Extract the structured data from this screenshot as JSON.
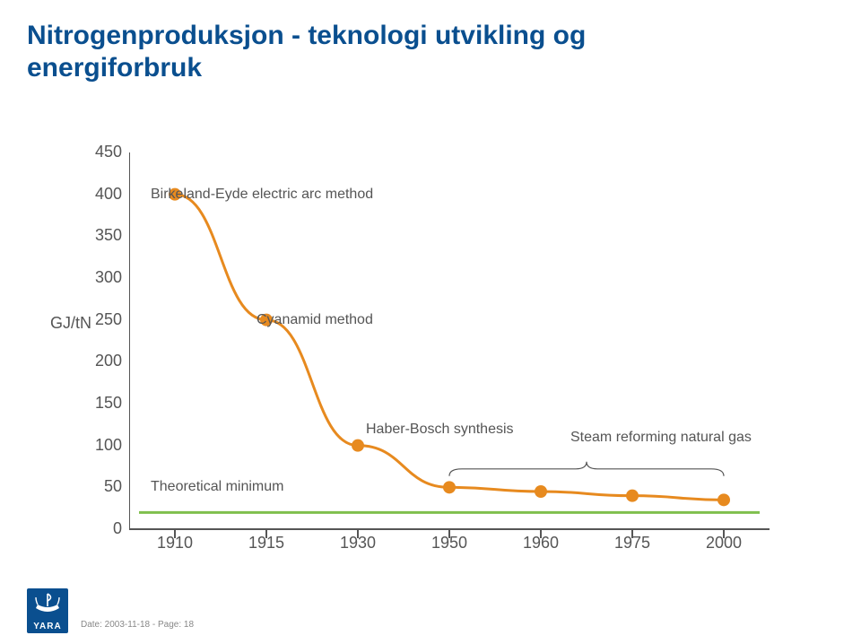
{
  "title_line1": "Nitrogenproduksjon - teknologi utvikling og",
  "title_line2": "energiforbruk",
  "title_color": "#0a4f8f",
  "chart": {
    "type": "line",
    "y_axis_label": "GJ/tN",
    "ylim": [
      0,
      450
    ],
    "ytick_step": 50,
    "yticks": [
      0,
      50,
      100,
      150,
      200,
      250,
      300,
      350,
      400,
      450
    ],
    "x_categories": [
      "1910",
      "1915",
      "1930",
      "1950",
      "1960",
      "1975",
      "2000"
    ],
    "series": {
      "values": [
        400,
        250,
        100,
        50,
        45,
        40,
        35
      ],
      "line_color": "#e78a1f",
      "line_width": 3,
      "marker_color": "#e78a1f",
      "marker_radius": 7
    },
    "theoretical_min": {
      "value": 20,
      "color": "#7fbf4d",
      "width": 3
    },
    "bracket_color": "#555555",
    "axis_color": "#555555",
    "tick_color": "#555555",
    "label_color": "#555555",
    "tick_fontsize": 18,
    "annotation_fontsize": 16,
    "annotations": {
      "a1": "Birkeland-Eyde electric arc method",
      "a2": "Cyanamid method",
      "a3": "Haber-Bosch synthesis",
      "a4": "Steam reforming natural gas",
      "a5": "Theoretical minimum"
    }
  },
  "footer": {
    "logo_text": "YARA",
    "date_text": "Date: 2003-11-18 - Page: 18"
  }
}
